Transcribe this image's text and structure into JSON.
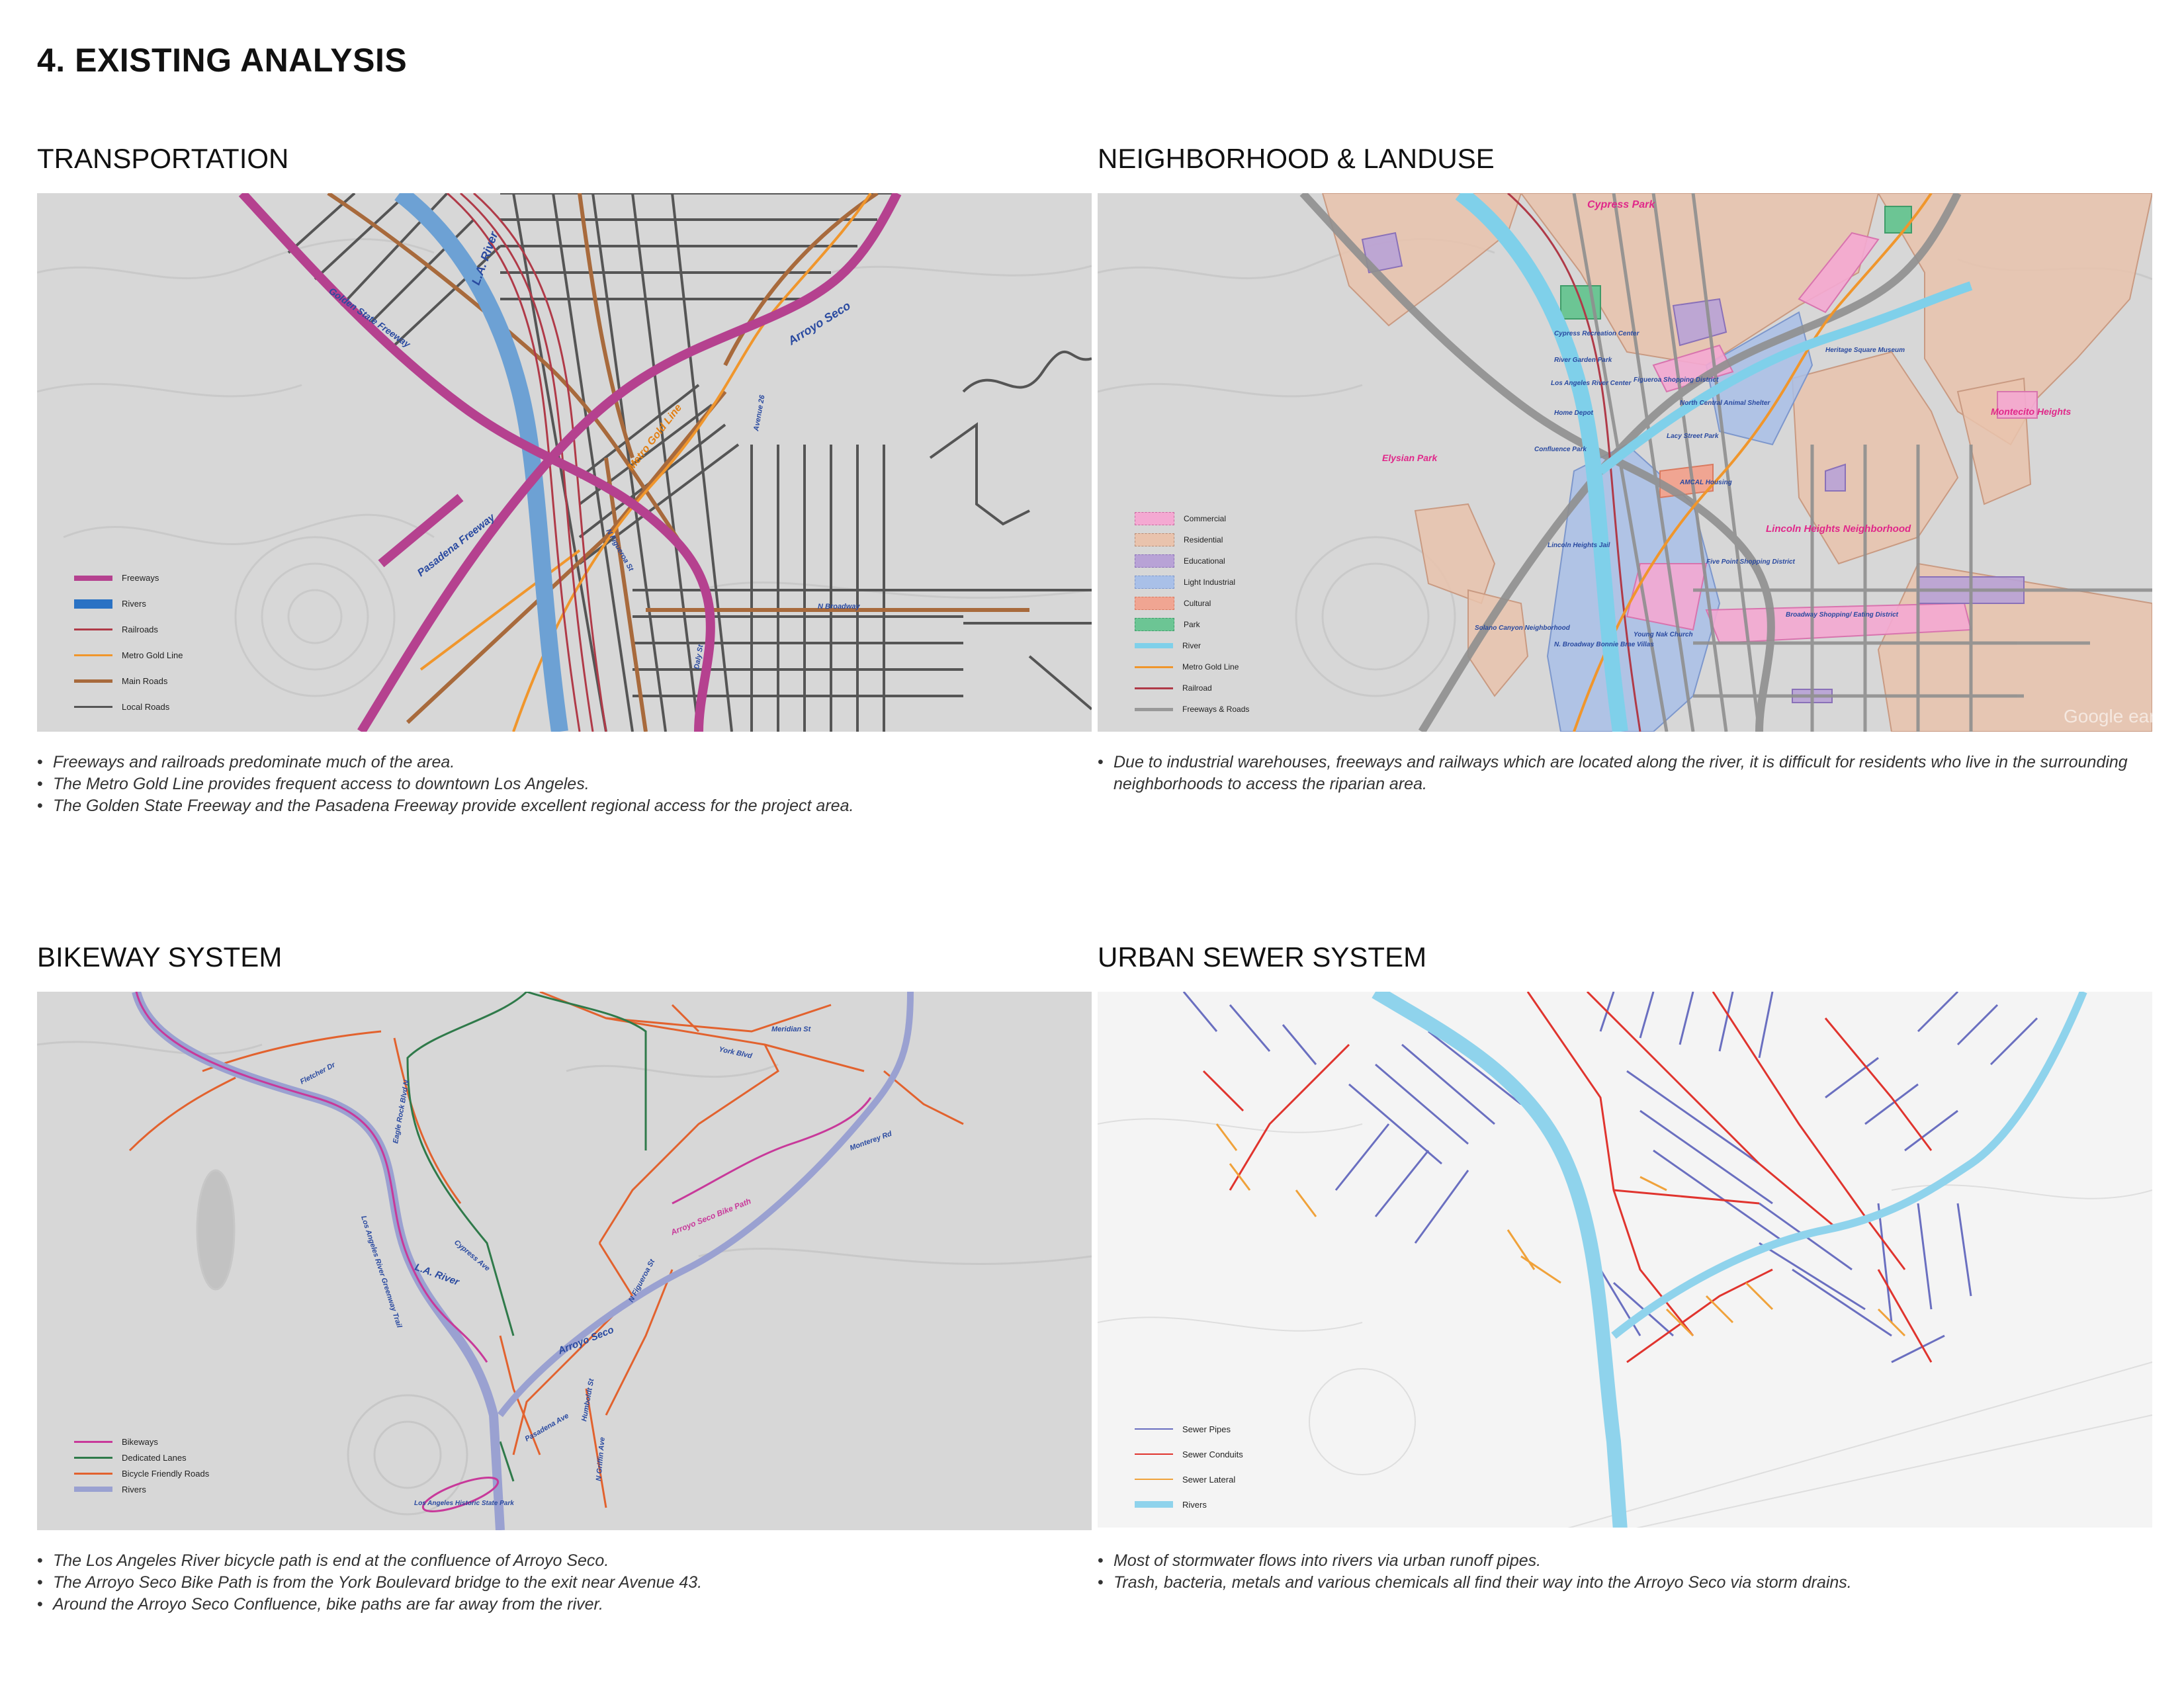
{
  "page": {
    "title": "4. EXISTING ANALYSIS"
  },
  "panels": {
    "transportation": {
      "title": "TRANSPORTATION",
      "labels": {
        "la_river": "L.A. River",
        "arroyo_seco": "Arroyo Seco",
        "metro_gold_line": "Metro Gold Line",
        "pasadena_freeway": "Pasadena Freeway",
        "golden_state_freeway": "Golden State Freeway",
        "n_broadway": "N Broadway",
        "n_figueroa": "N Figueroa St",
        "avenue_26": "Avenue 26",
        "daly_st": "Daly St"
      },
      "legend": [
        {
          "label": "Freeways",
          "color": "#b5418f"
        },
        {
          "label": "Rivers",
          "color": "#2a72c4"
        },
        {
          "label": "Railroads",
          "color": "#b03a48"
        },
        {
          "label": "Metro Gold Line",
          "color": "#f0962c"
        },
        {
          "label": "Main Roads",
          "color": "#a86a3c"
        },
        {
          "label": "Local Roads",
          "color": "#555555"
        }
      ],
      "notes": [
        "Freeways and railroads predominate much of the area.",
        "The Metro Gold Line provides frequent access to downtown Los Angeles.",
        "The Golden State Freeway and the Pasadena Freeway provide excellent regional access for the project area."
      ]
    },
    "landuse": {
      "title": "NEIGHBORHOOD & LANDUSE",
      "labels": {
        "cypress_park": "Cypress Park",
        "elysian_park": "Elysian Park",
        "montecito_heights": "Montecito Heights",
        "lincoln_heights": "Lincoln Heights Neighborhood",
        "cypress_rec": "Cypress Recreation Center",
        "river_garden": "River Garden Park",
        "la_river_center": "Los Angeles River Center",
        "home_depot": "Home Depot",
        "figueroa_shopping": "Figueroa Shopping District",
        "north_central": "North Central Animal Shelter",
        "heritage_square": "Heritage Square Museum",
        "lacy_street": "Lacy Street Park",
        "confluence_park": "Confluence Park",
        "amcal": "AMCAL Housing",
        "lincoln_jail": "Lincoln Heights Jail",
        "five_point": "Five Point Shopping District",
        "solano": "Solano Canyon Neighborhood",
        "broadway_villa": "N. Broadway Bonnie Brae Villas",
        "young_nak": "Young Nak Church",
        "broadway_shopping": "Broadway Shopping/ Eating District",
        "earth": "Google earth"
      },
      "legend": [
        {
          "label": "Commercial",
          "color": "#f4a9d2"
        },
        {
          "label": "Residential",
          "color": "#e9c3ad"
        },
        {
          "label": "Educational",
          "color": "#b8a2d6"
        },
        {
          "label": "Light Industrial",
          "color": "#a9c0e8"
        },
        {
          "label": "Cultural",
          "color": "#f0a592"
        },
        {
          "label": "Park",
          "color": "#6cc594"
        },
        {
          "label": "River",
          "color": "#7fd0ea"
        },
        {
          "label": "Metro Gold Line",
          "color": "#f0962c"
        },
        {
          "label": "Railroad",
          "color": "#b03a48"
        },
        {
          "label": "Freeways & Roads",
          "color": "#999999"
        }
      ],
      "notes": [
        "Due to industrial warehouses, freeways and railways which are located along the river, it is difficult for residents who live in the surrounding neighborhoods to access the riparian area."
      ]
    },
    "bikeway": {
      "title": "BIKEWAY SYSTEM",
      "labels": {
        "la_river": "L.A. River",
        "arroyo_seco": "Arroyo Seco",
        "bike_path": "Arroyo Seco Bike Path",
        "river_trail": "Los Angeles River Greenway Trail",
        "york_blvd": "York Blvd",
        "meridian": "Meridian St",
        "fletcher": "Fletcher Dr",
        "eagle_rock": "Eagle Rock Blvd N",
        "cypress_ave": "Cypress Ave",
        "figueroa": "N Figueroa St",
        "humboldt": "Humboldt St",
        "griffin": "N Griffin Ave",
        "pasadena_ave": "Pasadena Ave",
        "monterey": "Monterey Rd",
        "historic_park": "Los Angeles Historic State Park"
      },
      "legend": [
        {
          "label": "Bikeways",
          "color": "#c8399a"
        },
        {
          "label": "Dedicated Lanes",
          "color": "#2f7a4a"
        },
        {
          "label": "Bicycle Friendly Roads",
          "color": "#e2622e"
        },
        {
          "label": "Rivers",
          "color": "#9aa1d1"
        }
      ],
      "notes": [
        "The Los Angeles River bicycle path is end at the confluence of Arroyo Seco.",
        "The Arroyo Seco Bike Path is from the York Boulevard bridge to the exit near Avenue 43.",
        "Around the Arroyo Seco Confluence, bike paths are far away from the river."
      ]
    },
    "sewer": {
      "title": "URBAN SEWER SYSTEM",
      "legend": [
        {
          "label": "Sewer Pipes",
          "color": "#6a6fc0"
        },
        {
          "label": "Sewer Conduits",
          "color": "#e0342e"
        },
        {
          "label": "Sewer Lateral",
          "color": "#f0a23a"
        },
        {
          "label": "Rivers",
          "color": "#8fd3ec"
        }
      ],
      "notes": [
        "Most of stormwater flows into rivers via urban runoff pipes.",
        "Trash, bacteria, metals and various chemicals all find their way into the Arroyo Seco via storm drains."
      ]
    }
  }
}
